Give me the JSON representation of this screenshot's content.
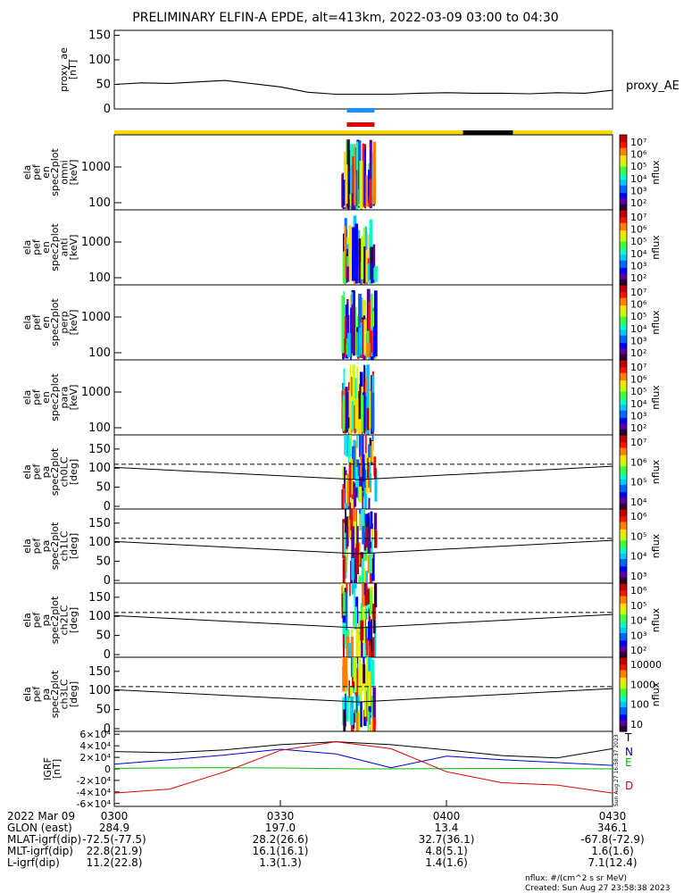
{
  "title": "PRELIMINARY ELFIN-A EPDE, alt=413km, 2022-03-09 03:00 to 04:30",
  "colors": {
    "bar_yellow": "#ffd700",
    "bar_black": "#000000",
    "bar_blue": "#1e90ff",
    "bar_red": "#e60000",
    "grf_t": "#000000",
    "grf_n": "#0000cc",
    "grf_e": "#00bb00",
    "grf_d": "#dd0000"
  },
  "chart_data": [
    {
      "type": "line",
      "panel": "proxy_ae",
      "ylabel": [
        "proxy_ae",
        "[nT]"
      ],
      "ylim": [
        0,
        160
      ],
      "yticks": [
        "0",
        "50",
        "100",
        "150"
      ],
      "series_label": "proxy_AE",
      "series": [
        {
          "name": "proxy_AE",
          "x": [
            0,
            5,
            10,
            20,
            30,
            35,
            40,
            45,
            50,
            55,
            60,
            65,
            70,
            75,
            80,
            85,
            90
          ],
          "values": [
            50,
            53,
            52,
            58,
            45,
            34,
            30,
            30,
            30,
            32,
            33,
            32,
            32,
            31,
            33,
            32,
            38
          ]
        }
      ]
    },
    {
      "type": "heatmap",
      "panel": "energy_spectrograms",
      "x_active_range_min": [
        41,
        47
      ],
      "panels": [
        {
          "ylabel": [
            "ela",
            "pef",
            "en",
            "spec2plot",
            "omni",
            "[keV]"
          ],
          "yticks": [
            "100",
            "1000"
          ]
        },
        {
          "ylabel": [
            "ela",
            "pef",
            "en",
            "spec2plot",
            "anti",
            "[keV]"
          ],
          "yticks": [
            "100",
            "1000"
          ]
        },
        {
          "ylabel": [
            "ela",
            "pef",
            "en",
            "spec2plot",
            "perp",
            "[keV]"
          ],
          "yticks": [
            "100",
            "1000"
          ]
        },
        {
          "ylabel": [
            "ela",
            "pef",
            "en",
            "spec2plot",
            "para",
            "[keV]"
          ],
          "yticks": [
            "100",
            "1000"
          ]
        }
      ],
      "colorbar_label": "nflux",
      "colorbar_ticks": [
        "10⁷",
        "10⁶",
        "10⁵",
        "10⁴",
        "10³",
        "10²"
      ]
    },
    {
      "type": "heatmap",
      "panel": "pitch_angle_spectrograms",
      "ylim": [
        0,
        180
      ],
      "yticks": [
        "0",
        "50",
        "100",
        "150"
      ],
      "panels": [
        {
          "ylabel": [
            "ela",
            "pef",
            "pa",
            "spec2plot",
            "ch0LC",
            "[deg]"
          ],
          "colorbar_ticks": [
            "10⁷",
            "10⁶",
            "10⁵",
            "10⁴"
          ]
        },
        {
          "ylabel": [
            "ela",
            "pef",
            "pa",
            "spec2plot",
            "ch1LC",
            "[deg]"
          ],
          "colorbar_ticks": [
            "10⁶",
            "10⁵",
            "10⁴",
            "10³"
          ]
        },
        {
          "ylabel": [
            "ela",
            "pef",
            "pa",
            "spec2plot",
            "ch2LC",
            "[deg]"
          ],
          "colorbar_ticks": [
            "10⁶",
            "10⁵",
            "10⁴",
            "10³",
            "10²"
          ]
        },
        {
          "ylabel": [
            "ela",
            "pef",
            "pa",
            "spec2plot",
            "ch3LC",
            "[deg]"
          ],
          "colorbar_ticks": [
            "10000",
            "1000",
            "100",
            "10"
          ]
        }
      ],
      "losscone_solid": {
        "x": [
          0,
          44,
          90
        ],
        "values": [
          102,
          70,
          105
        ]
      },
      "losscone_dashed": {
        "x": [
          0,
          90
        ],
        "values": [
          110,
          110
        ]
      },
      "colorbar_label": "nflux"
    },
    {
      "type": "line",
      "panel": "IGRF",
      "ylabel": [
        "IGRF",
        "[nT]"
      ],
      "ylim": [
        -65000,
        65000
      ],
      "yticks": [
        "6×10⁴",
        "4×10⁴",
        "2×10⁴",
        "0",
        "-2×10⁴",
        "-4×10⁴",
        "-6×10⁴"
      ],
      "series": [
        {
          "name": "T",
          "x": [
            0,
            10,
            20,
            30,
            40,
            50,
            60,
            70,
            80,
            90
          ],
          "values": [
            30000,
            28000,
            33000,
            42000,
            47000,
            42000,
            33000,
            23000,
            19000,
            35000
          ]
        },
        {
          "name": "N",
          "x": [
            0,
            10,
            20,
            30,
            40,
            50,
            60,
            70,
            80,
            90
          ],
          "values": [
            8000,
            16000,
            24000,
            34000,
            26000,
            2000,
            22000,
            16000,
            11000,
            6000
          ]
        },
        {
          "name": "E",
          "x": [
            0,
            15,
            30,
            45,
            60,
            75,
            90
          ],
          "values": [
            1000,
            2000,
            1500,
            0,
            500,
            800,
            0
          ]
        },
        {
          "name": "D",
          "x": [
            0,
            10,
            20,
            30,
            40,
            50,
            60,
            70,
            80,
            90
          ],
          "values": [
            -42000,
            -35000,
            -5000,
            32000,
            47000,
            35000,
            -5000,
            -24000,
            -28000,
            -42000
          ]
        }
      ]
    }
  ],
  "time_axis": {
    "date": "2022 Mar 09",
    "ticks": [
      "0300",
      "0330",
      "0400",
      "0430"
    ],
    "rows": [
      {
        "label": "GLON (east)",
        "values": [
          "284.9",
          "197.0",
          "13.4",
          "346.1"
        ]
      },
      {
        "label": "MLAT-igrf(dip)",
        "values": [
          "-72.5(-77.5)",
          "28.2(26.6)",
          "32.7(36.1)",
          "-67.8(-72.9)"
        ]
      },
      {
        "label": "MLT-igrf(dip)",
        "values": [
          "22.8(21.9)",
          "16.1(16.1)",
          "4.8(5.1)",
          "1.6(1.6)"
        ]
      },
      {
        "label": "L-igrf(dip)",
        "values": [
          "11.2(22.8)",
          "1.3(1.3)",
          "1.4(1.6)",
          "7.1(12.4)"
        ]
      }
    ]
  },
  "footer": {
    "units": "nflux: #/(cm^2 s sr MeV)",
    "created": "Created: Sun Aug 27 23:58:38 2023",
    "vertical_stamp": "Sun Aug 27 16:58:37 2023"
  }
}
